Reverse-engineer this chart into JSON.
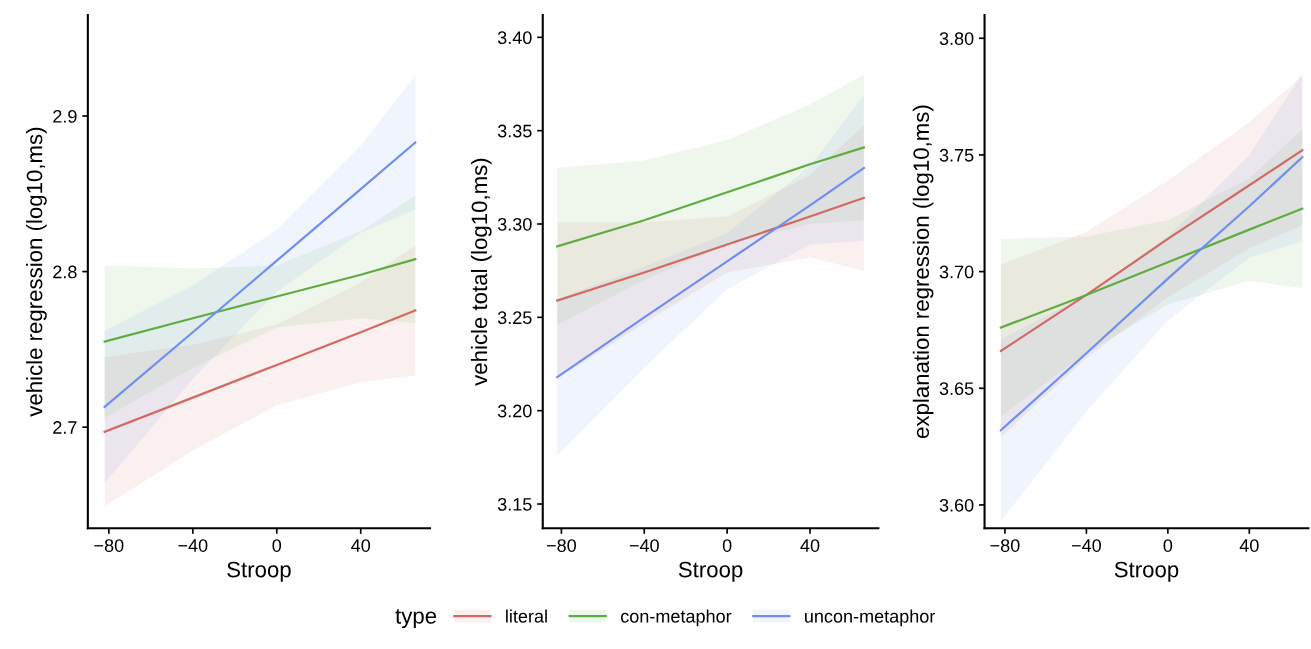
{
  "chart_data": [
    {
      "type": "line",
      "xlabel": "Stroop",
      "ylabel": "vehicle regression (log10,ms)",
      "x": [
        -82,
        -40,
        0,
        40,
        66
      ],
      "xlim": [
        -90,
        73
      ],
      "xticks": [
        -80,
        -40,
        0,
        40
      ],
      "ylim": [
        2.635,
        2.965
      ],
      "yticks": [
        2.7,
        2.8,
        2.9
      ],
      "grid": false,
      "legend": "bottom",
      "legend_title": "type",
      "series": [
        {
          "name": "literal",
          "color": "#d26a62",
          "values": [
            2.697,
            2.719,
            2.74,
            2.761,
            2.775
          ],
          "lower": [
            2.649,
            2.685,
            2.714,
            2.729,
            2.733
          ],
          "upper": [
            2.745,
            2.753,
            2.766,
            2.793,
            2.817
          ]
        },
        {
          "name": "con-metaphor",
          "color": "#5fad41",
          "values": [
            2.755,
            2.77,
            2.784,
            2.798,
            2.808
          ],
          "lower": [
            2.706,
            2.738,
            2.764,
            2.77,
            2.767
          ],
          "upper": [
            2.804,
            2.802,
            2.804,
            2.826,
            2.849
          ]
        },
        {
          "name": "uncon-metaphor",
          "color": "#6f8ff0",
          "values": [
            2.713,
            2.761,
            2.807,
            2.853,
            2.883
          ],
          "lower": [
            2.664,
            2.731,
            2.787,
            2.825,
            2.84
          ],
          "upper": [
            2.762,
            2.791,
            2.827,
            2.881,
            2.926
          ]
        }
      ]
    },
    {
      "type": "line",
      "xlabel": "Stroop",
      "ylabel": "vehicle total (log10,ms)",
      "x": [
        -82,
        -40,
        0,
        40,
        66
      ],
      "xlim": [
        -89,
        73
      ],
      "xticks": [
        -80,
        -40,
        0,
        40
      ],
      "ylim": [
        3.137,
        3.412
      ],
      "yticks": [
        {
          "value": 3.15,
          "label": "3.15"
        },
        {
          "value": 3.2,
          "label": "3.20"
        },
        {
          "value": 3.25,
          "label": "3.25"
        },
        {
          "value": 3.3,
          "label": "3.30"
        },
        {
          "value": 3.35,
          "label": "3.35"
        },
        {
          "value": 3.4,
          "label": "3.40"
        }
      ],
      "grid": false,
      "series": [
        {
          "color": "#d26a62",
          "values": [
            3.259,
            3.274,
            3.289,
            3.304,
            3.314
          ],
          "lower": [
            3.217,
            3.247,
            3.274,
            3.282,
            3.275
          ],
          "upper": [
            3.301,
            3.301,
            3.304,
            3.326,
            3.353
          ]
        },
        {
          "color": "#5fad41",
          "values": [
            3.288,
            3.302,
            3.317,
            3.332,
            3.341
          ],
          "lower": [
            3.246,
            3.27,
            3.289,
            3.3,
            3.302
          ],
          "upper": [
            3.33,
            3.334,
            3.345,
            3.364,
            3.38
          ]
        },
        {
          "color": "#6f8ff0",
          "values": [
            3.218,
            3.25,
            3.28,
            3.31,
            3.33
          ],
          "lower": [
            3.176,
            3.223,
            3.265,
            3.289,
            3.291
          ],
          "upper": [
            3.26,
            3.277,
            3.295,
            3.331,
            3.369
          ]
        }
      ]
    },
    {
      "type": "line",
      "xlabel": "Stroop",
      "ylabel": "explanation regression (log10,ms)",
      "x": [
        -82,
        -40,
        0,
        40,
        66
      ],
      "xlim": [
        -90,
        69
      ],
      "xticks": [
        -80,
        -40,
        0,
        40
      ],
      "ylim": [
        3.59,
        3.81
      ],
      "yticks": [
        {
          "value": 3.6,
          "label": "3.60"
        },
        {
          "value": 3.65,
          "label": "3.65"
        },
        {
          "value": 3.7,
          "label": "3.70"
        },
        {
          "value": 3.75,
          "label": "3.75"
        },
        {
          "value": 3.8,
          "label": "3.80"
        }
      ],
      "grid": false,
      "series": [
        {
          "color": "#d26a62",
          "values": [
            3.666,
            3.69,
            3.714,
            3.737,
            3.752
          ],
          "lower": [
            3.629,
            3.663,
            3.689,
            3.71,
            3.72
          ],
          "upper": [
            3.703,
            3.717,
            3.739,
            3.764,
            3.784
          ]
        },
        {
          "color": "#5fad41",
          "values": [
            3.676,
            3.69,
            3.704,
            3.718,
            3.727
          ],
          "lower": [
            3.638,
            3.665,
            3.686,
            3.696,
            3.693
          ],
          "upper": [
            3.714,
            3.715,
            3.722,
            3.74,
            3.761
          ]
        },
        {
          "color": "#6f8ff0",
          "values": [
            3.632,
            3.665,
            3.697,
            3.728,
            3.749
          ],
          "lower": [
            3.593,
            3.64,
            3.679,
            3.706,
            3.713
          ],
          "upper": [
            3.671,
            3.69,
            3.715,
            3.75,
            3.785
          ]
        }
      ]
    }
  ]
}
